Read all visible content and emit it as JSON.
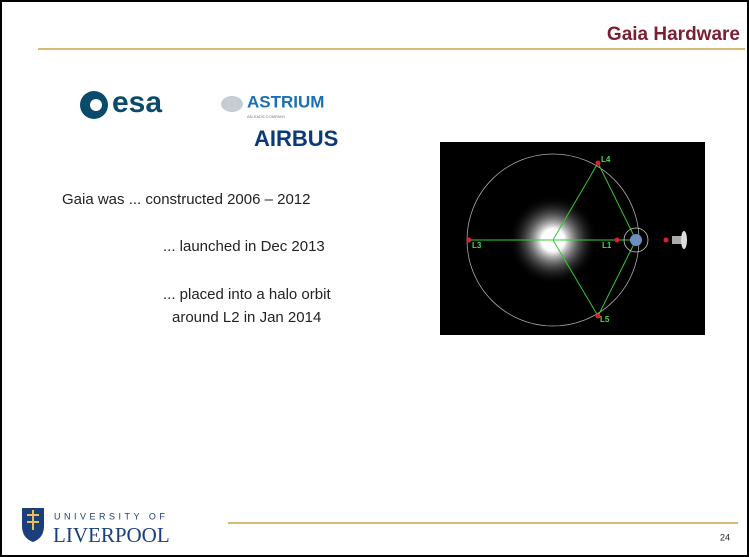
{
  "header": {
    "title": "Gaia Hardware"
  },
  "logos": {
    "esa": "esa",
    "astrium": "ASTRIUM",
    "eads": "AN EADS COMPANY",
    "airbus": "AIRBUS"
  },
  "body": {
    "lines": [
      "Gaia was ... constructed 2006 – 2012",
      "... launched in Dec 2013",
      "... placed into a halo orbit",
      "around L2 in Jan 2014"
    ]
  },
  "diagram": {
    "labels": [
      "L4",
      "L3",
      "L1",
      "L5"
    ]
  },
  "footer": {
    "university": "UNIVERSITY OF",
    "name": "LIVERPOOL",
    "page": "24"
  }
}
